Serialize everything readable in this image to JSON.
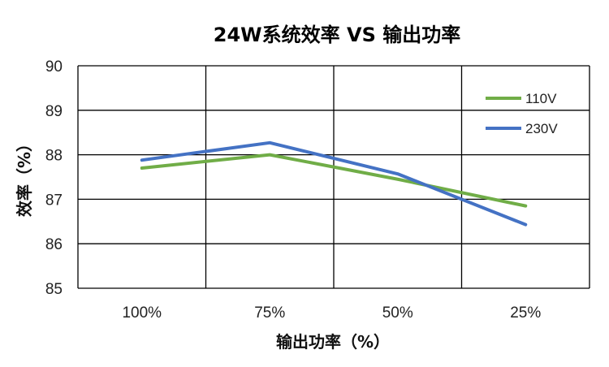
{
  "chart_data": {
    "type": "line",
    "title": "24W系统效率 VS 输出功率",
    "xlabel": "输出功率（%）",
    "ylabel": "效率（%）",
    "categories": [
      "100%",
      "75%",
      "50%",
      "25%"
    ],
    "ylim": [
      85,
      90
    ],
    "yticks": [
      "85",
      "86",
      "87",
      "88",
      "89",
      "90"
    ],
    "grid": true,
    "legend_position": "right",
    "series": [
      {
        "name": "110V",
        "values": [
          87.7,
          88.0,
          87.45,
          86.85
        ],
        "color": "#70ad47"
      },
      {
        "name": "230V",
        "values": [
          87.88,
          88.27,
          87.57,
          86.43
        ],
        "color": "#4472c4"
      }
    ]
  }
}
